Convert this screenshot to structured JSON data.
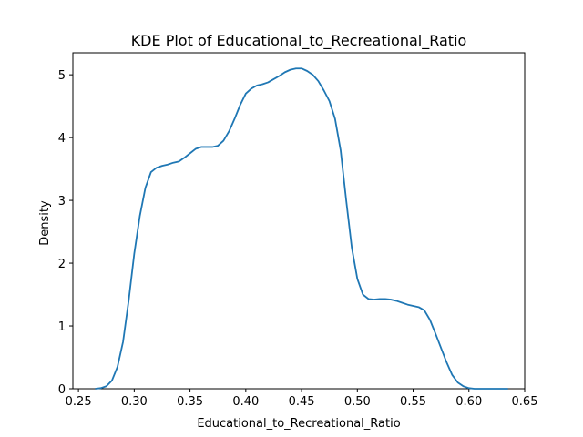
{
  "chart_data": {
    "type": "line",
    "title": "KDE Plot of Educational_to_Recreational_Ratio",
    "xlabel": "Educational_to_Recreational_Ratio",
    "ylabel": "Density",
    "xlim": [
      0.245,
      0.65
    ],
    "ylim": [
      0,
      5.35
    ],
    "xticks": [
      0.25,
      0.3,
      0.35,
      0.4,
      0.45,
      0.5,
      0.55,
      0.6,
      0.65
    ],
    "xtick_labels": [
      "0.25",
      "0.30",
      "0.35",
      "0.40",
      "0.45",
      "0.50",
      "0.55",
      "0.60",
      "0.65"
    ],
    "yticks": [
      0,
      1,
      2,
      3,
      4,
      5
    ],
    "ytick_labels": [
      "0",
      "1",
      "2",
      "3",
      "4",
      "5"
    ],
    "grid": false,
    "line_color": "#1f77b4",
    "series": [
      {
        "x": [
          0.265,
          0.27,
          0.275,
          0.28,
          0.285,
          0.29,
          0.295,
          0.3,
          0.305,
          0.31,
          0.315,
          0.32,
          0.325,
          0.33,
          0.335,
          0.34,
          0.345,
          0.35,
          0.355,
          0.36,
          0.365,
          0.37,
          0.375,
          0.38,
          0.385,
          0.39,
          0.395,
          0.4,
          0.405,
          0.41,
          0.415,
          0.42,
          0.425,
          0.43,
          0.435,
          0.44,
          0.445,
          0.45,
          0.455,
          0.46,
          0.465,
          0.47,
          0.475,
          0.48,
          0.485,
          0.49,
          0.495,
          0.5,
          0.505,
          0.51,
          0.515,
          0.52,
          0.525,
          0.53,
          0.535,
          0.54,
          0.545,
          0.55,
          0.555,
          0.56,
          0.565,
          0.57,
          0.575,
          0.58,
          0.585,
          0.59,
          0.595,
          0.6,
          0.605,
          0.61,
          0.615,
          0.62,
          0.625,
          0.63,
          0.635
        ],
        "y": [
          0.0,
          0.01,
          0.04,
          0.13,
          0.35,
          0.75,
          1.4,
          2.15,
          2.75,
          3.2,
          3.45,
          3.52,
          3.55,
          3.57,
          3.6,
          3.62,
          3.68,
          3.75,
          3.82,
          3.85,
          3.85,
          3.85,
          3.87,
          3.95,
          4.1,
          4.3,
          4.52,
          4.7,
          4.78,
          4.83,
          4.85,
          4.88,
          4.93,
          4.98,
          5.04,
          5.08,
          5.1,
          5.1,
          5.06,
          5.0,
          4.9,
          4.75,
          4.58,
          4.3,
          3.8,
          3.0,
          2.25,
          1.75,
          1.5,
          1.43,
          1.42,
          1.43,
          1.43,
          1.42,
          1.4,
          1.37,
          1.34,
          1.32,
          1.3,
          1.25,
          1.1,
          0.88,
          0.65,
          0.42,
          0.22,
          0.1,
          0.04,
          0.01,
          0.0,
          0.0,
          0.0,
          0.0,
          0.0,
          0.0,
          0.0
        ]
      }
    ]
  }
}
